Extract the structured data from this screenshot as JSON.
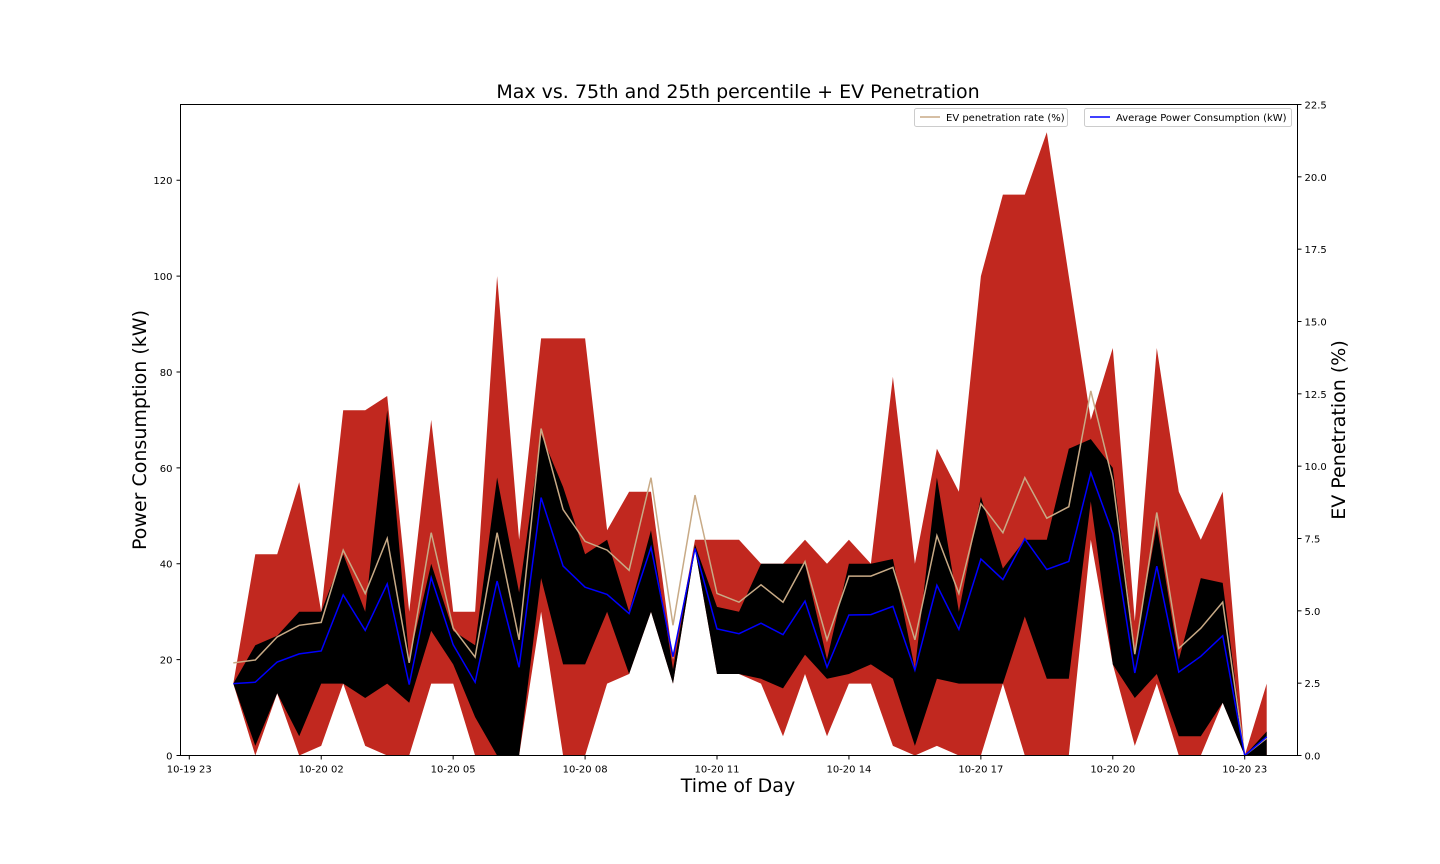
{
  "chart_data": {
    "type": "area",
    "title": "Max vs. 75th and 25th percentile + EV Penetration",
    "xlabel": "Time of Day",
    "ylabel": "Power Consumption (kW)",
    "ylabel_right": "EV Penetration (%)",
    "x_ticks": [
      "10-19 23",
      "10-20 02",
      "10-20 05",
      "10-20 08",
      "10-20 11",
      "10-20 14",
      "10-20 17",
      "10-20 20",
      "10-20 23"
    ],
    "x_start_hour": 23.0,
    "x_tick_hours": [
      23,
      26,
      29,
      32,
      35,
      38,
      41,
      44,
      47
    ],
    "xlim_hours": [
      22.8,
      48.2
    ],
    "ylim": [
      0,
      135.8
    ],
    "y_ticks": [
      0,
      20,
      40,
      60,
      80,
      100,
      120
    ],
    "ylim_right": [
      0,
      22.5
    ],
    "y_ticks_right": [
      0.0,
      2.5,
      5.0,
      7.5,
      10.0,
      12.5,
      15.0,
      17.5,
      20.0,
      22.5
    ],
    "hours": [
      24.0,
      24.5,
      25.0,
      25.5,
      26.0,
      26.5,
      27.0,
      27.5,
      28.0,
      28.5,
      29.0,
      29.5,
      30.0,
      30.5,
      31.0,
      31.5,
      32.0,
      32.5,
      33.0,
      33.5,
      34.0,
      34.5,
      35.0,
      35.5,
      36.0,
      36.5,
      37.0,
      37.5,
      38.0,
      38.5,
      39.0,
      39.5,
      40.0,
      40.5,
      41.0,
      41.5,
      42.0,
      42.5,
      43.0,
      43.5,
      44.0,
      44.5,
      45.0,
      45.5,
      46.0,
      46.5,
      47.0,
      47.5
    ],
    "series": [
      {
        "name": "",
        "role": "max",
        "color": "#c1281f",
        "values": [
          15,
          42,
          42,
          57,
          30,
          72,
          72,
          75,
          30,
          70,
          30,
          30,
          100,
          45,
          87,
          87,
          87,
          47,
          55,
          55,
          20,
          45,
          45,
          45,
          40,
          40,
          45,
          40,
          45,
          40,
          79,
          40,
          64,
          55,
          100,
          117,
          117,
          130,
          100,
          70,
          85,
          28,
          85,
          55,
          45,
          55,
          0,
          15
        ]
      },
      {
        "name": "",
        "role": "p75",
        "color": "#000000",
        "values": [
          15,
          23,
          25,
          30,
          30,
          42,
          30,
          72,
          20,
          40,
          26,
          23,
          58,
          34,
          67,
          56,
          42,
          45,
          30,
          47,
          18,
          44,
          31,
          30,
          40,
          40,
          40,
          20,
          40,
          40,
          41,
          18,
          58,
          30,
          54,
          39,
          45,
          45,
          64,
          66,
          60,
          22,
          48,
          20,
          37,
          36,
          0,
          5
        ]
      },
      {
        "name": "",
        "role": "p25",
        "color": "#000000",
        "values": [
          15,
          2,
          13,
          4,
          15,
          15,
          12,
          15,
          11,
          26,
          19,
          8,
          0,
          0,
          37,
          19,
          19,
          30,
          17,
          30,
          15,
          43,
          17,
          17,
          16,
          14,
          21,
          16,
          17,
          19,
          16,
          2,
          16,
          15,
          15,
          15,
          29,
          16,
          16,
          53,
          19,
          12,
          17,
          4,
          4,
          11,
          0,
          0
        ]
      },
      {
        "name": "",
        "role": "min",
        "color": "#c1281f",
        "values": [
          15,
          0,
          13,
          0,
          2,
          15,
          2,
          0,
          0,
          15,
          15,
          0,
          0,
          0,
          30,
          0,
          0,
          15,
          17,
          30,
          15,
          43,
          17,
          17,
          15,
          4,
          17,
          4,
          15,
          15,
          2,
          0,
          2,
          0,
          0,
          15,
          0,
          0,
          0,
          45,
          19,
          2,
          15,
          0,
          0,
          11,
          0,
          0
        ]
      },
      {
        "name": "Average Power Consumption (kW)",
        "role": "mean",
        "axis": "left",
        "color": "#0000ff",
        "values": [
          15,
          15.3,
          19.5,
          21.2,
          21.8,
          33.5,
          26.1,
          35.8,
          14.8,
          37.1,
          23.1,
          15.3,
          36.4,
          18.4,
          53.8,
          39.5,
          35.1,
          33.6,
          29.6,
          43.4,
          20.6,
          43.2,
          26.4,
          25.4,
          27.6,
          25.2,
          32.2,
          18.4,
          29.3,
          29.4,
          31.1,
          17.8,
          35.5,
          26.3,
          41.0,
          36.7,
          45.2,
          38.8,
          40.5,
          59.0,
          46.3,
          17.2,
          39.5,
          17.4,
          20.7,
          25.0,
          0,
          3.9
        ]
      },
      {
        "name": "EV penetration rate (%)",
        "role": "ev",
        "axis": "right",
        "color": "#c8aa86",
        "values": [
          3.2,
          3.3,
          4.1,
          4.5,
          4.6,
          7.1,
          5.6,
          7.5,
          3.2,
          7.7,
          4.4,
          3.4,
          7.7,
          4.0,
          11.3,
          8.5,
          7.4,
          7.1,
          6.4,
          9.6,
          4.5,
          9.0,
          5.6,
          5.3,
          5.9,
          5.3,
          6.7,
          4.0,
          6.2,
          6.2,
          6.5,
          4.0,
          7.6,
          5.6,
          8.7,
          7.7,
          9.6,
          8.2,
          8.6,
          12.6,
          9.5,
          3.5,
          8.4,
          3.7,
          4.4,
          5.3,
          0,
          0.6
        ]
      }
    ],
    "legend": {
      "placement": "top-right",
      "entries": [
        "EV penetration rate (%)",
        "Average Power Consumption (kW)"
      ]
    },
    "grid": false
  }
}
